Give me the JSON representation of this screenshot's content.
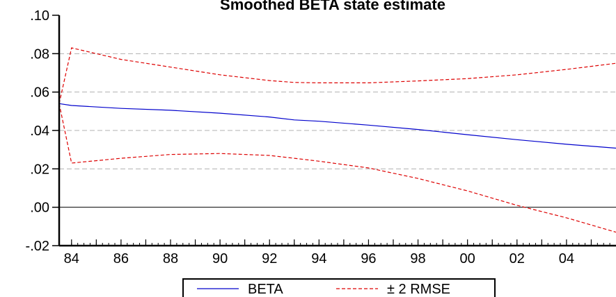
{
  "chart_data": {
    "type": "line",
    "title": "Smoothed BETA state estimate",
    "xlabel": "",
    "ylabel": "",
    "x": [
      1983.5,
      1984,
      1986,
      1988,
      1990,
      1992,
      1993,
      1994,
      1996,
      1998,
      2000,
      2002,
      2004,
      2006
    ],
    "xlim": [
      1983.5,
      2006
    ],
    "ylim": [
      -0.02,
      0.1
    ],
    "y_ticks": [
      -0.02,
      0.0,
      0.02,
      0.04,
      0.06,
      0.08,
      0.1
    ],
    "y_tick_labels": [
      "-.02",
      ".00",
      ".02",
      ".04",
      ".06",
      ".08",
      ".10"
    ],
    "x_ticks": [
      1984,
      1986,
      1988,
      1990,
      1992,
      1994,
      1996,
      1998,
      2000,
      2002,
      2004
    ],
    "x_tick_labels": [
      "84",
      "86",
      "88",
      "90",
      "92",
      "94",
      "96",
      "98",
      "00",
      "02",
      "04"
    ],
    "grid": true,
    "zero_line": true,
    "legend_position": "bottom-center",
    "series": [
      {
        "name": "BETA",
        "color": "#0000cc",
        "dash": "solid",
        "values": [
          0.054,
          0.053,
          0.0515,
          0.0505,
          0.049,
          0.047,
          0.0455,
          0.0448,
          0.0428,
          0.0405,
          0.0378,
          0.0352,
          0.0328,
          0.0308
        ]
      },
      {
        "name": "± 2 RMSE",
        "color": "#dd0000",
        "dash": "dashed",
        "values": [
          0.054,
          0.083,
          0.077,
          0.073,
          0.069,
          0.066,
          0.065,
          0.0648,
          0.0648,
          0.0658,
          0.067,
          0.069,
          0.0718,
          0.075
        ]
      },
      {
        "name": "",
        "color": "#dd0000",
        "dash": "dashed",
        "legend": false,
        "values": [
          0.054,
          0.023,
          0.0255,
          0.0275,
          0.028,
          0.027,
          0.0255,
          0.024,
          0.0205,
          0.015,
          0.0085,
          0.001,
          -0.0055,
          -0.013
        ]
      }
    ]
  }
}
